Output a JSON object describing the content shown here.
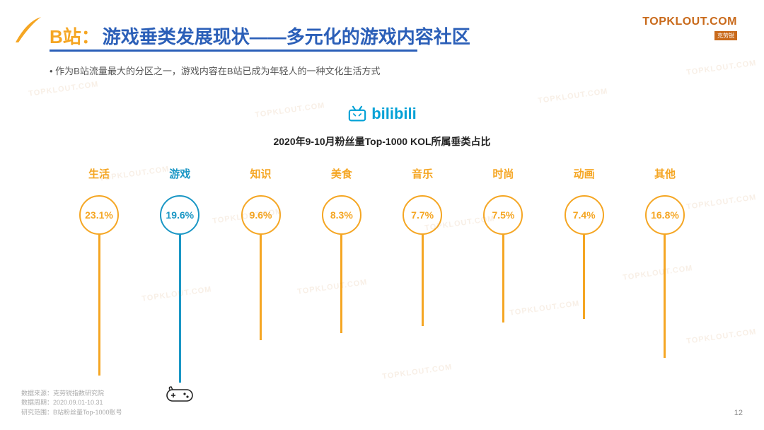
{
  "header": {
    "prefix": "B站：",
    "title": "游戏垂类发展现状——多元化的游戏内容社区",
    "underline_color": "#2b5fb8",
    "prefix_color": "#f5a623",
    "title_color": "#2b5fb8"
  },
  "top_right": {
    "brand": "TOPKLOUT.COM",
    "sub": "克劳锐"
  },
  "bullet": "• 作为B站流量最大的分区之一，游戏内容在B站已成为年轻人的一种文化生活方式",
  "bili": {
    "text": "bilibili",
    "color": "#00a1d6"
  },
  "subtitle": "2020年9-10月粉丝量Top-1000 KOL所属垂类占比",
  "chart": {
    "type": "lollipop",
    "circle_diameter": 56,
    "circle_border_width": 2,
    "stick_width": 3,
    "label_fontsize": 15,
    "value_fontsize": 14,
    "default_color": "#f5a623",
    "highlight_color": "#1b97c5",
    "background": "#ffffff",
    "items": [
      {
        "label": "生活",
        "value": "23.1%",
        "stick_height": 200,
        "highlight": false
      },
      {
        "label": "游戏",
        "value": "19.6%",
        "stick_height": 210,
        "highlight": true,
        "icon": "gamepad"
      },
      {
        "label": "知识",
        "value": "9.6%",
        "stick_height": 150,
        "highlight": false
      },
      {
        "label": "美食",
        "value": "8.3%",
        "stick_height": 140,
        "highlight": false
      },
      {
        "label": "音乐",
        "value": "7.7%",
        "stick_height": 130,
        "highlight": false
      },
      {
        "label": "时尚",
        "value": "7.5%",
        "stick_height": 125,
        "highlight": false
      },
      {
        "label": "动画",
        "value": "7.4%",
        "stick_height": 120,
        "highlight": false
      },
      {
        "label": "其他",
        "value": "16.8%",
        "stick_height": 175,
        "highlight": false
      }
    ]
  },
  "footnotes": {
    "l1": "数据来源：克劳锐指数研究院",
    "l2": "数据周期：2020.09.01-10.31",
    "l3": "研究范围：B站粉丝量Top-1000账号"
  },
  "page": "12",
  "watermark_text": "TOPKLOUT.COM"
}
